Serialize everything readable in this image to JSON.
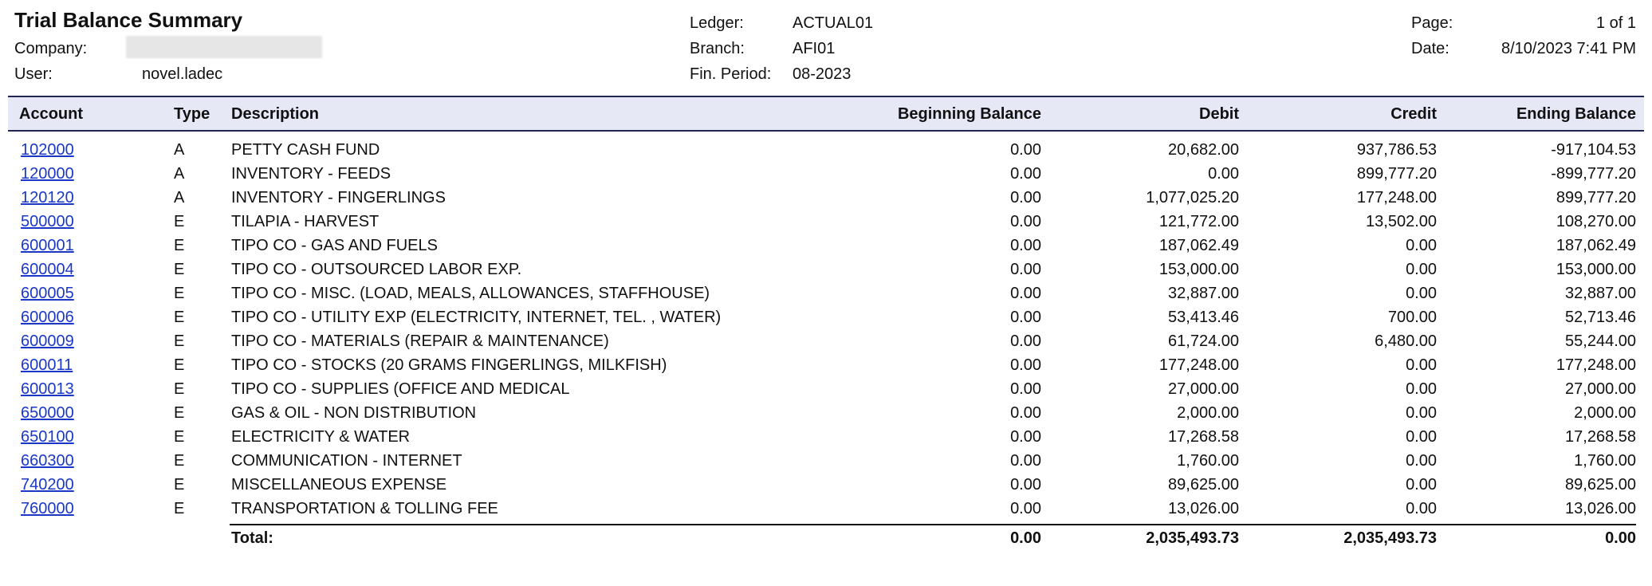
{
  "report": {
    "title": "Trial Balance Summary",
    "company_label": "Company:",
    "user_label": "User:",
    "user_value": "novel.ladec",
    "ledger_label": "Ledger:",
    "ledger_value": "ACTUAL01",
    "branch_label": "Branch:",
    "branch_value": "AFI01",
    "period_label": "Fin. Period:",
    "period_value": "08-2023",
    "page_label": "Page:",
    "page_value": "1 of 1",
    "date_label": "Date:",
    "date_value": "8/10/2023 7:41 PM"
  },
  "table": {
    "headers": {
      "account": "Account",
      "type": "Type",
      "description": "Description",
      "beginning": "Beginning Balance",
      "debit": "Debit",
      "credit": "Credit",
      "ending": "Ending Balance"
    },
    "rows": [
      {
        "account": "102000",
        "type": "A",
        "description": "PETTY CASH FUND",
        "beginning": "0.00",
        "debit": "20,682.00",
        "credit": "937,786.53",
        "ending": "-917,104.53"
      },
      {
        "account": "120000",
        "type": "A",
        "description": "INVENTORY - FEEDS",
        "beginning": "0.00",
        "debit": "0.00",
        "credit": "899,777.20",
        "ending": "-899,777.20"
      },
      {
        "account": "120120",
        "type": "A",
        "description": "INVENTORY - FINGERLINGS",
        "beginning": "0.00",
        "debit": "1,077,025.20",
        "credit": "177,248.00",
        "ending": "899,777.20"
      },
      {
        "account": "500000",
        "type": "E",
        "description": "TILAPIA - HARVEST",
        "beginning": "0.00",
        "debit": "121,772.00",
        "credit": "13,502.00",
        "ending": "108,270.00"
      },
      {
        "account": "600001",
        "type": "E",
        "description": "TIPO CO - GAS AND FUELS",
        "beginning": "0.00",
        "debit": "187,062.49",
        "credit": "0.00",
        "ending": "187,062.49"
      },
      {
        "account": "600004",
        "type": "E",
        "description": "TIPO CO - OUTSOURCED LABOR EXP.",
        "beginning": "0.00",
        "debit": "153,000.00",
        "credit": "0.00",
        "ending": "153,000.00"
      },
      {
        "account": "600005",
        "type": "E",
        "description": "TIPO CO - MISC. (LOAD, MEALS, ALLOWANCES, STAFFHOUSE)",
        "beginning": "0.00",
        "debit": "32,887.00",
        "credit": "0.00",
        "ending": "32,887.00"
      },
      {
        "account": "600006",
        "type": "E",
        "description": "TIPO CO - UTILITY EXP (ELECTRICITY, INTERNET, TEL. , WATER)",
        "beginning": "0.00",
        "debit": "53,413.46",
        "credit": "700.00",
        "ending": "52,713.46"
      },
      {
        "account": "600009",
        "type": "E",
        "description": "TIPO CO - MATERIALS (REPAIR & MAINTENANCE)",
        "beginning": "0.00",
        "debit": "61,724.00",
        "credit": "6,480.00",
        "ending": "55,244.00"
      },
      {
        "account": "600011",
        "type": "E",
        "description": "TIPO CO - STOCKS (20 GRAMS FINGERLINGS, MILKFISH)",
        "beginning": "0.00",
        "debit": "177,248.00",
        "credit": "0.00",
        "ending": "177,248.00"
      },
      {
        "account": "600013",
        "type": "E",
        "description": "TIPO CO - SUPPLIES (OFFICE AND MEDICAL",
        "beginning": "0.00",
        "debit": "27,000.00",
        "credit": "0.00",
        "ending": "27,000.00"
      },
      {
        "account": "650000",
        "type": "E",
        "description": "GAS & OIL - NON DISTRIBUTION",
        "beginning": "0.00",
        "debit": "2,000.00",
        "credit": "0.00",
        "ending": "2,000.00"
      },
      {
        "account": "650100",
        "type": "E",
        "description": "ELECTRICITY & WATER",
        "beginning": "0.00",
        "debit": "17,268.58",
        "credit": "0.00",
        "ending": "17,268.58"
      },
      {
        "account": "660300",
        "type": "E",
        "description": "COMMUNICATION - INTERNET",
        "beginning": "0.00",
        "debit": "1,760.00",
        "credit": "0.00",
        "ending": "1,760.00"
      },
      {
        "account": "740200",
        "type": "E",
        "description": "MISCELLANEOUS EXPENSE",
        "beginning": "0.00",
        "debit": "89,625.00",
        "credit": "0.00",
        "ending": "89,625.00"
      },
      {
        "account": "760000",
        "type": "E",
        "description": "TRANSPORTATION & TOLLING FEE",
        "beginning": "0.00",
        "debit": "13,026.00",
        "credit": "0.00",
        "ending": "13,026.00"
      }
    ],
    "total": {
      "label": "Total:",
      "beginning": "0.00",
      "debit": "2,035,493.73",
      "credit": "2,035,493.73",
      "ending": "0.00"
    }
  }
}
